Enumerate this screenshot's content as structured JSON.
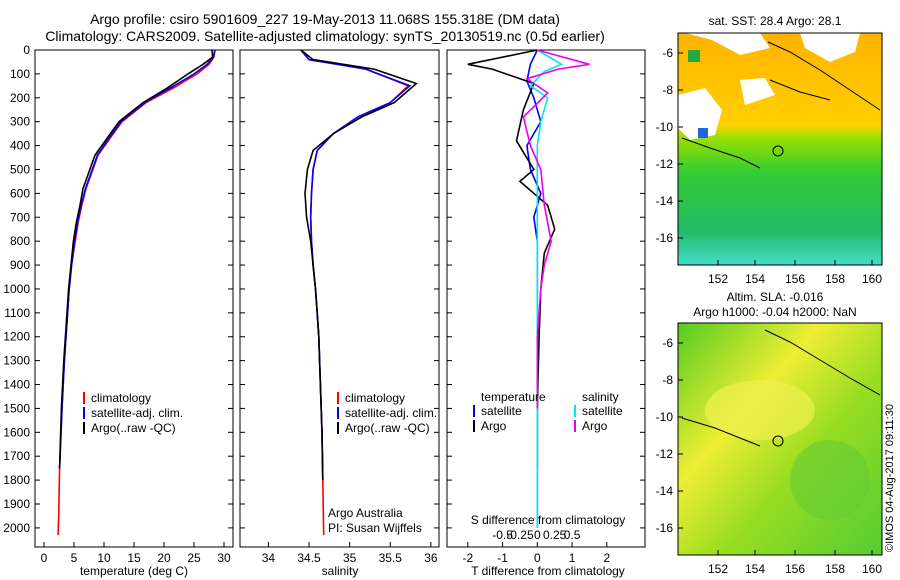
{
  "titles": {
    "line1": "Argo profile: csiro 5901609_227 19-May-2013 11.068S 155.318E (DM data)",
    "line2": "Climatology: CARS2009. Satellite-adjusted climatology: synTS_20130519.nc (0.5d earlier)"
  },
  "colors": {
    "climatology": "#ff0000",
    "satellite": "#0000ff",
    "argo": "#000000",
    "temp_sat": "#0000ff",
    "sal_sat": "#00e5ee",
    "sal_argo": "#ee00ee"
  },
  "panel1": {
    "xlabel": "temperature (deg C)",
    "legend": [
      "climatology",
      "satellite-adj. clim.",
      "Argo(..raw -QC)"
    ]
  },
  "panel2": {
    "xlabel": "salinity",
    "legend": [
      "climatology",
      "satellite-adj. clim.",
      "Argo(..raw -QC)"
    ],
    "credit1": "Argo Australia",
    "credit2": "PI: Susan Wijffels"
  },
  "panel3": {
    "xlabel": "T difference from climatology",
    "top_label": "S difference from climatology",
    "legend_temp_title": "temperature",
    "legend_sal_title": "salinity",
    "legend_temp": [
      "satellite",
      "Argo"
    ],
    "legend_sal": [
      "satellite",
      "Argo"
    ]
  },
  "map1": {
    "title": "sat. SST: 28.4  Argo: 28.1"
  },
  "map2": {
    "title1": "Altim. SLA: -0.016",
    "title2": "Argo h1000: -0.04 h2000: NaN"
  },
  "imos": "©IMOS 04-Aug-2017 09:11:30",
  "chart_data": [
    {
      "type": "line",
      "title": "",
      "xlabel": "temperature (deg C)",
      "ylabel": "",
      "xlim": [
        -1.5,
        31.5
      ],
      "ylim": [
        2080,
        0
      ],
      "xticks": [
        0,
        5,
        10,
        15,
        20,
        25,
        30
      ],
      "yticks": [
        0,
        100,
        200,
        300,
        400,
        500,
        600,
        700,
        800,
        900,
        1000,
        1100,
        1200,
        1300,
        1400,
        1500,
        1600,
        1700,
        1800,
        1900,
        2000
      ],
      "series": [
        {
          "name": "climatology",
          "color": "#ff0000",
          "x": [
            28.5,
            28.3,
            27.5,
            25.5,
            21.5,
            17,
            13,
            11,
            9,
            8,
            7,
            6.3,
            5.7,
            5.2,
            4.6,
            4.2,
            3.8,
            3.4,
            3.0,
            2.6,
            2.45,
            2.35
          ],
          "y": [
            0,
            30,
            60,
            100,
            160,
            220,
            300,
            370,
            440,
            510,
            580,
            650,
            720,
            800,
            900,
            1000,
            1150,
            1300,
            1500,
            1750,
            1950,
            2030
          ]
        },
        {
          "name": "satellite-adj. clim.",
          "color": "#0000ff",
          "x": [
            28.5,
            28.2,
            27.2,
            25,
            21,
            16.8,
            12.8,
            10.8,
            8.9,
            7.9,
            6.9,
            6.2,
            5.6,
            5.1,
            4.6,
            4.2,
            3.8,
            3.4,
            3.0,
            2.6
          ],
          "y": [
            0,
            30,
            60,
            100,
            160,
            220,
            300,
            370,
            440,
            510,
            580,
            650,
            720,
            800,
            900,
            1000,
            1150,
            1300,
            1500,
            1750
          ]
        },
        {
          "name": "Argo(..raw -QC)",
          "color": "#000000",
          "x": [
            28.0,
            28.1,
            26.5,
            24,
            20.5,
            16.5,
            12.5,
            10.5,
            8.5,
            7.5,
            6.5,
            6.0,
            5.4,
            4.9,
            4.5,
            4.1,
            3.7,
            3.3,
            2.9,
            2.6
          ],
          "y": [
            0,
            30,
            60,
            100,
            160,
            220,
            300,
            370,
            440,
            510,
            580,
            650,
            720,
            800,
            900,
            1000,
            1150,
            1300,
            1500,
            1750
          ]
        }
      ]
    },
    {
      "type": "line",
      "title": "",
      "xlabel": "salinity",
      "ylabel": "",
      "xlim": [
        33.65,
        36.1
      ],
      "ylim": [
        2080,
        0
      ],
      "xticks": [
        34,
        34.5,
        35,
        35.5,
        36
      ],
      "series": [
        {
          "name": "climatology",
          "color": "#ff0000",
          "x": [
            34.4,
            34.5,
            35.2,
            35.72,
            35.5,
            35.1,
            34.8,
            34.6,
            34.55,
            34.53,
            34.52,
            34.53,
            34.55,
            34.58,
            34.6,
            34.62,
            34.64,
            34.66,
            34.67,
            34.68
          ],
          "y": [
            0,
            40,
            80,
            150,
            220,
            280,
            350,
            420,
            500,
            600,
            700,
            800,
            900,
            1000,
            1100,
            1200,
            1400,
            1600,
            1800,
            2030
          ]
        },
        {
          "name": "satellite-adj. clim.",
          "color": "#0000ff",
          "x": [
            34.4,
            34.5,
            35.2,
            35.74,
            35.5,
            35.1,
            34.8,
            34.6,
            34.55,
            34.53,
            34.52,
            34.53,
            34.55,
            34.58,
            34.6,
            34.62,
            34.64,
            34.66,
            34.67
          ],
          "y": [
            0,
            40,
            80,
            150,
            220,
            280,
            350,
            420,
            500,
            600,
            700,
            800,
            900,
            1000,
            1100,
            1200,
            1400,
            1600,
            1800
          ]
        },
        {
          "name": "Argo(..raw -QC)",
          "color": "#000000",
          "x": [
            34.4,
            34.55,
            35.3,
            35.82,
            35.55,
            35.15,
            34.8,
            34.55,
            34.48,
            34.45,
            34.47,
            34.52,
            34.55,
            34.58,
            34.6,
            34.62,
            34.64,
            34.66,
            34.67
          ],
          "y": [
            0,
            40,
            80,
            140,
            220,
            280,
            350,
            420,
            500,
            600,
            700,
            800,
            900,
            1000,
            1100,
            1200,
            1400,
            1600,
            1800
          ]
        }
      ]
    },
    {
      "type": "line",
      "title": "",
      "xlabel": "T difference from climatology",
      "top_label": "S difference from climatology",
      "xlim": [
        -2.6,
        3.1
      ],
      "ylim": [
        2080,
        0
      ],
      "xticks": [
        -2,
        -1,
        0,
        1,
        2
      ],
      "top_ticks": [
        "-0.5",
        "-0.25",
        "0",
        "0.25",
        "0.5"
      ],
      "series": [
        {
          "name": "temperature satellite",
          "color": "#0000ff",
          "x": [
            0.0,
            -0.2,
            -0.3,
            -0.1,
            0.1,
            -0.3,
            -0.2,
            0.1,
            -0.1,
            0.0,
            0.0,
            0.0,
            0.0,
            0.0,
            0.0
          ],
          "y": [
            0,
            60,
            130,
            200,
            300,
            400,
            500,
            600,
            700,
            800,
            1000,
            1200,
            1400,
            1700,
            2000
          ]
        },
        {
          "name": "temperature Argo",
          "color": "#000000",
          "x": [
            0.0,
            -2.0,
            -1.3,
            -0.1,
            -0.4,
            -0.6,
            -0.1,
            -0.5,
            0.3,
            0.5,
            0.2,
            0.1,
            0.05,
            0.0,
            0.0
          ],
          "y": [
            0,
            60,
            80,
            140,
            250,
            380,
            500,
            550,
            650,
            750,
            850,
            1000,
            1200,
            1500,
            1750
          ]
        },
        {
          "name": "salinity satellite",
          "color": "#00e5ee",
          "x": [
            0.0,
            0.7,
            0.2,
            -0.2,
            0.3,
            0.1,
            0.0,
            0.0,
            0.0,
            0.0,
            0.0,
            0.0,
            0.0
          ],
          "y": [
            0,
            60,
            90,
            150,
            200,
            300,
            400,
            600,
            800,
            1000,
            1400,
            1800,
            2000
          ]
        },
        {
          "name": "salinity Argo",
          "color": "#ee00ee",
          "x": [
            0.0,
            1.5,
            0.6,
            -0.3,
            0.3,
            -0.4,
            -0.2,
            0.1,
            0.2,
            0.4,
            0.2,
            0.1,
            0.0,
            0.0
          ],
          "y": [
            0,
            60,
            80,
            120,
            180,
            280,
            400,
            500,
            650,
            800,
            900,
            1000,
            1200,
            1500
          ]
        }
      ]
    }
  ],
  "map_axes": {
    "lon_ticks": [
      "152",
      "154",
      "156",
      "158",
      "160"
    ],
    "lat_ticks": [
      "-6",
      "-8",
      "-10",
      "-12",
      "-14",
      "-16"
    ]
  }
}
